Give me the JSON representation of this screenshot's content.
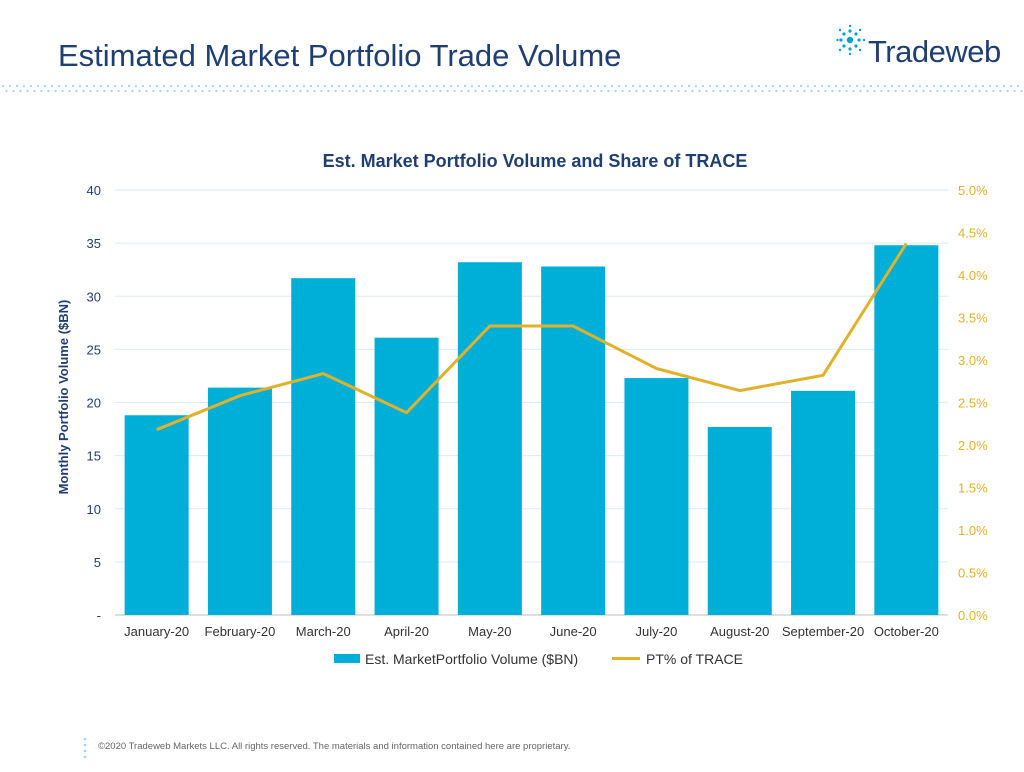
{
  "page": {
    "title": "Estimated Market Portfolio Trade Volume",
    "logo_text": "Tradeweb",
    "footer": "©2020 Tradeweb Markets LLC. All rights reserved. The materials and information contained here are proprietary."
  },
  "colors": {
    "title": "#1f3f73",
    "bar": "#00afd8",
    "line": "#e2b12a",
    "right_axis": "#e2b12a",
    "dots": "#9cd8ea"
  },
  "chart_data": {
    "type": "bar",
    "title": "Est. Market Portfolio Volume and Share of TRACE",
    "categories": [
      "January-20",
      "February-20",
      "March-20",
      "April-20",
      "May-20",
      "June-20",
      "July-20",
      "August-20",
      "September-20",
      "October-20"
    ],
    "series": [
      {
        "name": "Est. MarketPortfolio Volume ($BN)",
        "type": "bar",
        "axis": "left",
        "values": [
          18.8,
          21.4,
          31.7,
          26.1,
          33.2,
          32.8,
          22.3,
          17.7,
          21.1,
          34.8
        ]
      },
      {
        "name": "PT% of TRACE",
        "type": "line",
        "axis": "right",
        "values": [
          2.18,
          2.58,
          2.84,
          2.38,
          3.4,
          3.4,
          2.9,
          2.64,
          2.82,
          4.37
        ]
      }
    ],
    "ylabel": "Monthly Portfolio Volume ($BN)",
    "ylim": [
      0,
      40
    ],
    "yticks": [
      "-",
      "5",
      "10",
      "15",
      "20",
      "25",
      "30",
      "35",
      "40"
    ],
    "y2lim": [
      0,
      5
    ],
    "y2ticks": [
      "0.0%",
      "0.5%",
      "1.0%",
      "1.5%",
      "2.0%",
      "2.5%",
      "3.0%",
      "3.5%",
      "4.0%",
      "4.5%",
      "5.0%"
    ],
    "grid": true,
    "legend": "bottom"
  }
}
